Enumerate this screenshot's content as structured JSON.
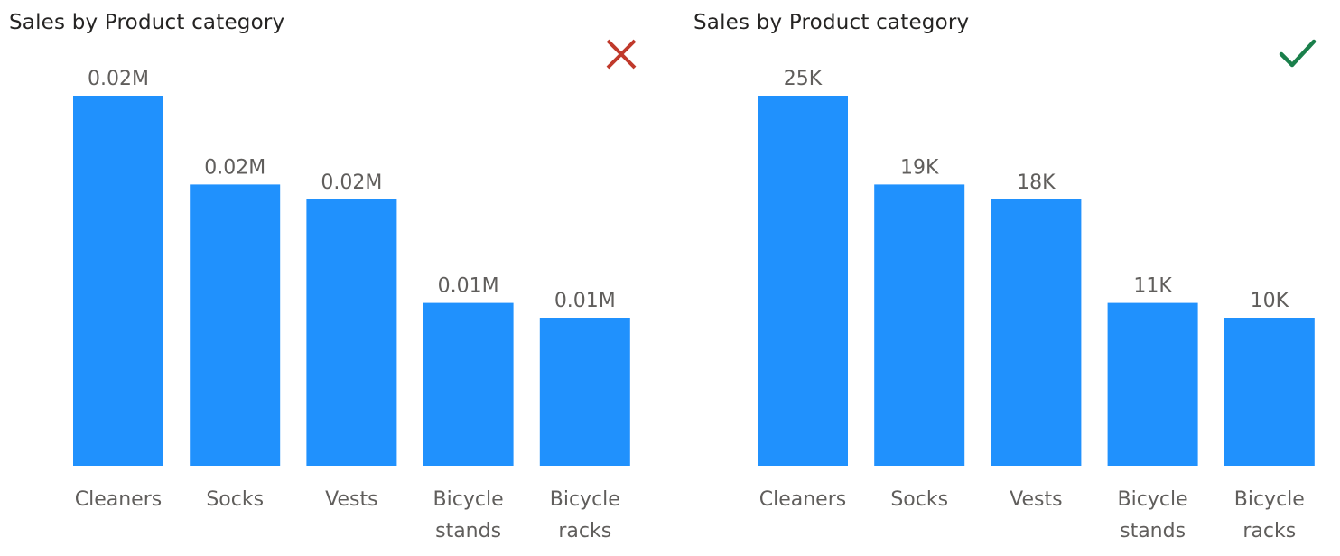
{
  "icons": {
    "incorrect": "close-icon",
    "correct": "check-icon",
    "incorrect_color": "#c0392b",
    "correct_color": "#1a7f4b"
  },
  "bar_color": "#2091fd",
  "chart_data": [
    {
      "type": "bar",
      "title": "Sales by Product category",
      "xlabel": "",
      "ylabel": "",
      "categories": [
        [
          "Cleaners"
        ],
        [
          "Socks"
        ],
        [
          "Vests"
        ],
        [
          "Bicycle",
          "stands"
        ],
        [
          "Bicycle",
          "racks"
        ]
      ],
      "values": [
        25,
        19,
        18,
        11,
        10
      ],
      "value_unit": "K",
      "data_labels": [
        "0.02M",
        "0.02M",
        "0.02M",
        "0.01M",
        "0.01M"
      ],
      "ylim": [
        0,
        25
      ],
      "grid": false,
      "status": "incorrect"
    },
    {
      "type": "bar",
      "title": "Sales by Product category",
      "xlabel": "",
      "ylabel": "",
      "categories": [
        [
          "Cleaners"
        ],
        [
          "Socks"
        ],
        [
          "Vests"
        ],
        [
          "Bicycle",
          "stands"
        ],
        [
          "Bicycle",
          "racks"
        ]
      ],
      "values": [
        25,
        19,
        18,
        11,
        10
      ],
      "value_unit": "K",
      "data_labels": [
        "25K",
        "19K",
        "18K",
        "11K",
        "10K"
      ],
      "ylim": [
        0,
        25
      ],
      "grid": false,
      "status": "correct"
    }
  ]
}
